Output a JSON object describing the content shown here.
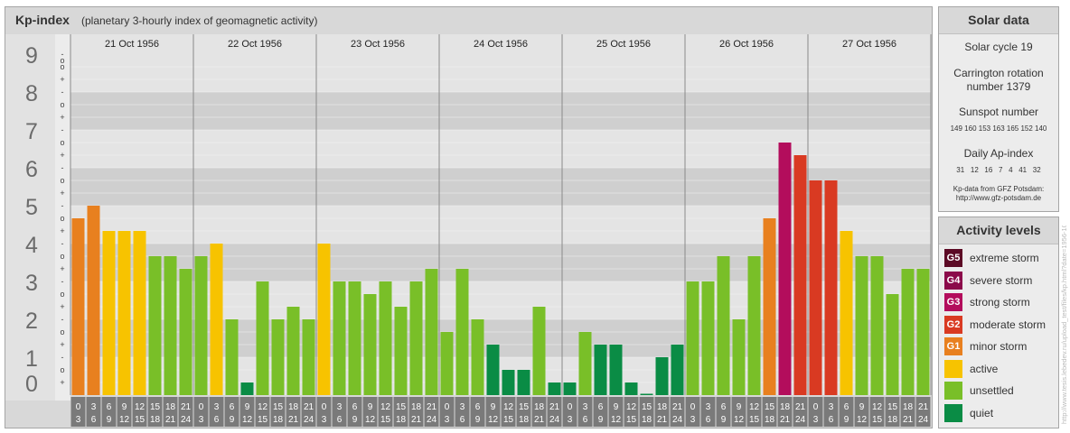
{
  "title": "Kp-index",
  "subtitle": "(planetary 3-hourly index of geomagnetic activity)",
  "chart_data": {
    "type": "bar",
    "ylim": [
      0,
      9
    ],
    "y_ticks": [
      "0",
      "1",
      "2",
      "3",
      "4",
      "5",
      "6",
      "7",
      "8",
      "9"
    ],
    "sub_ticks": [
      "+",
      "o",
      "-"
    ],
    "days": [
      "21 Oct 1956",
      "22 Oct 1956",
      "23 Oct 1956",
      "24 Oct 1956",
      "25 Oct 1956",
      "26 Oct 1956",
      "27 Oct 1956"
    ],
    "interval_starts": [
      "0",
      "3",
      "6",
      "9",
      "12",
      "15",
      "18",
      "21"
    ],
    "interval_ends": [
      "3",
      "6",
      "9",
      "12",
      "15",
      "18",
      "21",
      "24"
    ],
    "values": [
      [
        4.667,
        5.0,
        4.333,
        4.333,
        4.333,
        3.667,
        3.667,
        3.333
      ],
      [
        3.667,
        4.0,
        2.0,
        0.333,
        3.0,
        2.0,
        2.333,
        2.0
      ],
      [
        4.0,
        3.0,
        3.0,
        2.667,
        3.0,
        2.333,
        3.0,
        3.333
      ],
      [
        1.667,
        3.333,
        2.0,
        1.333,
        0.667,
        0.667,
        2.333,
        0.333
      ],
      [
        0.333,
        1.667,
        1.333,
        1.333,
        0.333,
        0.0,
        1.0,
        1.333
      ],
      [
        3.0,
        3.0,
        3.667,
        2.0,
        3.667,
        4.667,
        6.667,
        6.333
      ],
      [
        5.667,
        5.667,
        4.333,
        3.667,
        3.667,
        2.667,
        3.333,
        3.333
      ]
    ],
    "legend_position": "right"
  },
  "solar_data": {
    "title": "Solar data",
    "solar_cycle": "Solar cycle 19",
    "carrington_line1": "Carrington rotation",
    "carrington_line2": "number 1379",
    "sunspot_title": "Sunspot number",
    "sunspot_values": "149 160 153 163 165 152 140",
    "ap_title": "Daily Ap-index",
    "ap_values": "31   12   16   7   4   41   32",
    "source_line1": "Kp-data from GFZ Potsdam:",
    "source_line2": "http://www.gfz-potsdam.de"
  },
  "activity_levels": {
    "title": "Activity levels",
    "items": [
      {
        "code": "G5",
        "label": "extreme storm",
        "color": "#5c0a25"
      },
      {
        "code": "G4",
        "label": "severe storm",
        "color": "#8b0a4a"
      },
      {
        "code": "G3",
        "label": "strong storm",
        "color": "#b30d5c"
      },
      {
        "code": "G2",
        "label": "moderate storm",
        "color": "#d93a22"
      },
      {
        "code": "G1",
        "label": "minor storm",
        "color": "#e8801f"
      },
      {
        "code": "",
        "label": "active",
        "color": "#f7c300"
      },
      {
        "code": "",
        "label": "unsettled",
        "color": "#79bf28"
      },
      {
        "code": "",
        "label": "quiet",
        "color": "#0a8c45"
      }
    ]
  },
  "watermark": "http://www.tesis.lebedev.ru/upload_test/files/kp.html?date=1956-10-27 archive.php"
}
